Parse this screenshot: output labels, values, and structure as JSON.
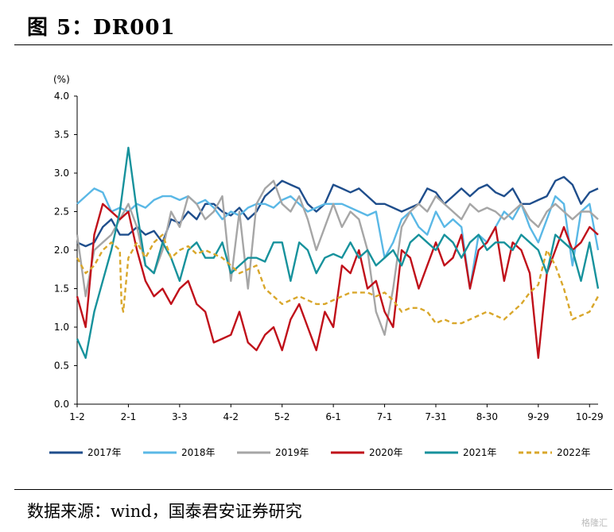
{
  "figure": {
    "title": "图 5：DR001",
    "source": "数据来源：wind，国泰君安证券研究",
    "watermark": "格隆汇"
  },
  "chart_data": {
    "type": "line",
    "unit_label": "(%)",
    "ylim": [
      0,
      4.0
    ],
    "y_ticks": [
      "0.0",
      "0.5",
      "1.0",
      "1.5",
      "2.0",
      "2.5",
      "3.0",
      "3.5",
      "4.0"
    ],
    "x_ticks": [
      "1-2",
      "2-1",
      "3-3",
      "4-2",
      "5-2",
      "6-1",
      "7-1",
      "7-31",
      "8-30",
      "9-29",
      "10-29"
    ],
    "x_tick_positions": [
      0,
      30,
      60,
      90,
      120,
      150,
      180,
      210,
      240,
      270,
      300
    ],
    "grid": false,
    "legend_position": "bottom",
    "series": [
      {
        "name": "2017年",
        "color": "#1f4e8c",
        "dash": false,
        "x": [
          0,
          5,
          10,
          15,
          20,
          25,
          30,
          35,
          40,
          45,
          50,
          55,
          60,
          65,
          70,
          75,
          80,
          85,
          90,
          95,
          100,
          105,
          110,
          115,
          120,
          125,
          130,
          135,
          140,
          145,
          150,
          155,
          160,
          165,
          170,
          175,
          180,
          185,
          190,
          195,
          200,
          205,
          210,
          215,
          220,
          225,
          230,
          235,
          240,
          245,
          250,
          255,
          260,
          265,
          270,
          275,
          280,
          285,
          290,
          295,
          300,
          305
        ],
        "values": [
          2.1,
          2.05,
          2.1,
          2.3,
          2.4,
          2.2,
          2.2,
          2.3,
          2.2,
          2.25,
          2.1,
          2.4,
          2.35,
          2.5,
          2.4,
          2.6,
          2.6,
          2.5,
          2.45,
          2.55,
          2.4,
          2.5,
          2.7,
          2.8,
          2.9,
          2.85,
          2.8,
          2.6,
          2.5,
          2.6,
          2.85,
          2.8,
          2.75,
          2.8,
          2.7,
          2.6,
          2.6,
          2.55,
          2.5,
          2.55,
          2.6,
          2.8,
          2.75,
          2.6,
          2.7,
          2.8,
          2.7,
          2.8,
          2.85,
          2.75,
          2.7,
          2.8,
          2.6,
          2.6,
          2.65,
          2.7,
          2.9,
          2.95,
          2.85,
          2.6,
          2.75,
          2.8
        ]
      },
      {
        "name": "2018年",
        "color": "#5ab8e6",
        "dash": false,
        "x": [
          0,
          5,
          10,
          15,
          20,
          25,
          30,
          35,
          40,
          45,
          50,
          55,
          60,
          65,
          70,
          75,
          80,
          85,
          90,
          95,
          100,
          105,
          110,
          115,
          120,
          125,
          130,
          135,
          140,
          145,
          150,
          155,
          160,
          165,
          170,
          175,
          180,
          185,
          190,
          195,
          200,
          205,
          210,
          215,
          220,
          225,
          230,
          235,
          240,
          245,
          250,
          255,
          260,
          265,
          270,
          275,
          280,
          285,
          290,
          295,
          300,
          305
        ],
        "values": [
          2.6,
          2.7,
          2.8,
          2.75,
          2.5,
          2.55,
          2.5,
          2.6,
          2.55,
          2.65,
          2.7,
          2.7,
          2.65,
          2.7,
          2.6,
          2.65,
          2.55,
          2.4,
          2.5,
          2.45,
          2.55,
          2.6,
          2.6,
          2.55,
          2.65,
          2.7,
          2.6,
          2.5,
          2.55,
          2.6,
          2.6,
          2.6,
          2.55,
          2.5,
          2.45,
          2.5,
          1.9,
          2.1,
          2.4,
          2.5,
          2.3,
          2.2,
          2.5,
          2.3,
          2.4,
          2.3,
          1.5,
          2.2,
          2.1,
          2.3,
          2.5,
          2.4,
          2.6,
          2.3,
          2.1,
          2.4,
          2.7,
          2.6,
          1.8,
          2.5,
          2.6,
          2.0
        ]
      },
      {
        "name": "2019年",
        "color": "#a6a6a6",
        "dash": false,
        "x": [
          0,
          5,
          10,
          15,
          20,
          25,
          30,
          35,
          40,
          45,
          50,
          55,
          60,
          65,
          70,
          75,
          80,
          85,
          90,
          95,
          100,
          105,
          110,
          115,
          120,
          125,
          130,
          135,
          140,
          145,
          150,
          155,
          160,
          165,
          170,
          175,
          180,
          185,
          190,
          195,
          200,
          205,
          210,
          215,
          220,
          225,
          230,
          235,
          240,
          245,
          250,
          255,
          260,
          265,
          270,
          275,
          280,
          285,
          290,
          295,
          300,
          305
        ],
        "values": [
          2.2,
          1.4,
          2.0,
          2.1,
          2.2,
          2.4,
          2.6,
          2.3,
          1.8,
          1.7,
          2.0,
          2.5,
          2.3,
          2.7,
          2.6,
          2.4,
          2.5,
          2.7,
          1.6,
          2.5,
          1.5,
          2.6,
          2.8,
          2.9,
          2.6,
          2.5,
          2.7,
          2.4,
          2.0,
          2.3,
          2.6,
          2.3,
          2.5,
          2.4,
          2.0,
          1.2,
          0.9,
          1.5,
          2.3,
          2.5,
          2.6,
          2.5,
          2.7,
          2.6,
          2.5,
          2.4,
          2.6,
          2.5,
          2.55,
          2.5,
          2.4,
          2.5,
          2.6,
          2.4,
          2.3,
          2.5,
          2.6,
          2.5,
          2.4,
          2.5,
          2.5,
          2.4
        ]
      },
      {
        "name": "2020年",
        "color": "#c0101a",
        "dash": false,
        "x": [
          0,
          5,
          10,
          15,
          20,
          25,
          30,
          35,
          40,
          45,
          50,
          55,
          60,
          65,
          70,
          75,
          80,
          85,
          90,
          95,
          100,
          105,
          110,
          115,
          120,
          125,
          130,
          135,
          140,
          145,
          150,
          155,
          160,
          165,
          170,
          175,
          180,
          185,
          190,
          195,
          200,
          205,
          210,
          215,
          220,
          225,
          230,
          235,
          240,
          245,
          250,
          255,
          260,
          265,
          270,
          275,
          280,
          285,
          290,
          295,
          300,
          305
        ],
        "values": [
          1.4,
          1.0,
          2.2,
          2.6,
          2.5,
          2.4,
          2.5,
          2.0,
          1.6,
          1.4,
          1.5,
          1.3,
          1.5,
          1.6,
          1.3,
          1.2,
          0.8,
          0.85,
          0.9,
          1.2,
          0.8,
          0.7,
          0.9,
          1.0,
          0.7,
          1.1,
          1.3,
          1.0,
          0.7,
          1.2,
          1.0,
          1.8,
          1.7,
          2.0,
          1.5,
          1.6,
          1.2,
          1.0,
          2.0,
          1.9,
          1.5,
          1.8,
          2.1,
          1.8,
          1.9,
          2.2,
          1.5,
          2.0,
          2.1,
          2.3,
          1.6,
          2.1,
          2.0,
          1.7,
          0.6,
          1.7,
          2.0,
          2.3,
          2.0,
          2.1,
          2.3,
          2.2
        ]
      },
      {
        "name": "2021年",
        "color": "#17929c",
        "dash": false,
        "x": [
          0,
          5,
          10,
          15,
          20,
          25,
          30,
          35,
          40,
          45,
          50,
          55,
          60,
          65,
          70,
          75,
          80,
          85,
          90,
          95,
          100,
          105,
          110,
          115,
          120,
          125,
          130,
          135,
          140,
          145,
          150,
          155,
          160,
          165,
          170,
          175,
          180,
          185,
          190,
          195,
          200,
          205,
          210,
          215,
          220,
          225,
          230,
          235,
          240,
          245,
          250,
          255,
          260,
          265,
          270,
          275,
          280,
          285,
          290,
          295,
          300,
          305
        ],
        "values": [
          0.85,
          0.6,
          1.2,
          1.6,
          2.0,
          2.5,
          3.33,
          2.5,
          1.8,
          1.7,
          2.1,
          1.9,
          1.6,
          2.0,
          2.1,
          1.9,
          1.9,
          2.1,
          1.7,
          1.8,
          1.9,
          1.9,
          1.85,
          2.1,
          2.1,
          1.6,
          2.1,
          2.0,
          1.7,
          1.9,
          1.95,
          1.9,
          2.1,
          1.9,
          2.0,
          1.8,
          1.9,
          2.0,
          1.8,
          2.1,
          2.2,
          2.1,
          2.0,
          2.2,
          2.1,
          1.9,
          2.1,
          2.2,
          2.0,
          2.1,
          2.1,
          2.0,
          2.2,
          2.1,
          2.0,
          1.7,
          2.2,
          2.1,
          2.0,
          1.6,
          2.1,
          1.5
        ]
      },
      {
        "name": "2022年",
        "color": "#d9a72b",
        "dash": true,
        "x": [
          0,
          5,
          10,
          15,
          20,
          25,
          26,
          27,
          30,
          35,
          40,
          45,
          50,
          55,
          60,
          65,
          70,
          75,
          80,
          85,
          90,
          95,
          100,
          105,
          110,
          115,
          120,
          125,
          130,
          135,
          140,
          145,
          150,
          155,
          160,
          165,
          170,
          175,
          180,
          185,
          190,
          195,
          200,
          205,
          210,
          215,
          220,
          225,
          230,
          235,
          240,
          245,
          250,
          255,
          260,
          265,
          270,
          275,
          280,
          285,
          290,
          295,
          300,
          305
        ],
        "values": [
          1.9,
          1.7,
          1.8,
          2.0,
          2.1,
          2.0,
          1.3,
          1.2,
          1.9,
          2.1,
          1.9,
          2.1,
          2.2,
          1.9,
          2.0,
          2.05,
          1.95,
          2.0,
          1.95,
          1.9,
          1.8,
          1.7,
          1.75,
          1.8,
          1.5,
          1.4,
          1.3,
          1.35,
          1.4,
          1.35,
          1.3,
          1.3,
          1.35,
          1.4,
          1.45,
          1.45,
          1.45,
          1.4,
          1.45,
          1.35,
          1.2,
          1.25,
          1.25,
          1.2,
          1.05,
          1.1,
          1.05,
          1.05,
          1.1,
          1.15,
          1.2,
          1.15,
          1.1,
          1.2,
          1.3,
          1.45,
          1.55,
          2.0,
          1.8,
          1.5,
          1.1,
          1.15,
          1.2,
          1.4
        ]
      }
    ]
  }
}
